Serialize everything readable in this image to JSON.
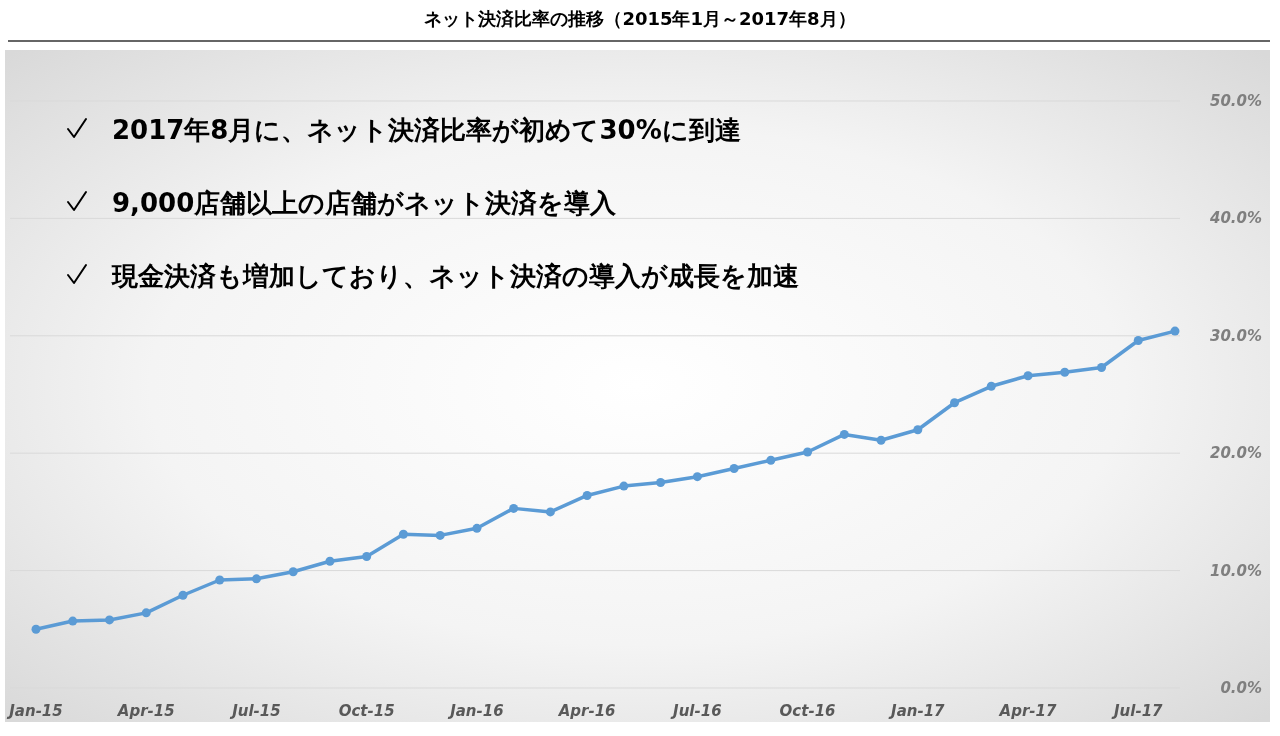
{
  "chart_data": {
    "type": "line",
    "title": "ネット決済比率の推移（2015年1月～2017年8月）",
    "categories": [
      "Jan-15",
      null,
      null,
      "Apr-15",
      null,
      null,
      "Jul-15",
      null,
      null,
      "Oct-15",
      null,
      null,
      "Jan-16",
      null,
      null,
      "Apr-16",
      null,
      null,
      "Jul-16",
      null,
      null,
      "Oct-16",
      null,
      null,
      "Jan-17",
      null,
      null,
      "Apr-17",
      null,
      null,
      "Jul-17",
      null
    ],
    "series": [
      {
        "color": "#5b9bd5",
        "values": [
          5.0,
          5.7,
          5.8,
          6.4,
          7.9,
          9.2,
          9.3,
          9.9,
          10.8,
          11.2,
          13.1,
          13.0,
          13.6,
          15.3,
          15.0,
          16.4,
          17.2,
          17.5,
          18.0,
          18.7,
          19.4,
          20.1,
          21.6,
          21.1,
          22.0,
          24.3,
          25.7,
          26.6,
          26.9,
          27.3,
          29.6,
          30.4
        ]
      }
    ],
    "ylim": [
      0,
      50
    ],
    "yticks": [
      {
        "value": 0,
        "label": "0.0%"
      },
      {
        "value": 10,
        "label": "10.0%"
      },
      {
        "value": 20,
        "label": "20.0%"
      },
      {
        "value": 30,
        "label": "30.0%"
      },
      {
        "value": 40,
        "label": "40.0%"
      },
      {
        "value": 50,
        "label": "50.0%"
      }
    ],
    "grid": "y",
    "marker": "circle",
    "line_style": "solid",
    "annotations": [
      "2017年8月に、ネット決済比率が初めて30%に到達",
      "9,000店舗以上の店舗がネット決済を導入",
      "現金決済も増加しており、ネット決済の導入が成長を加速"
    ]
  }
}
